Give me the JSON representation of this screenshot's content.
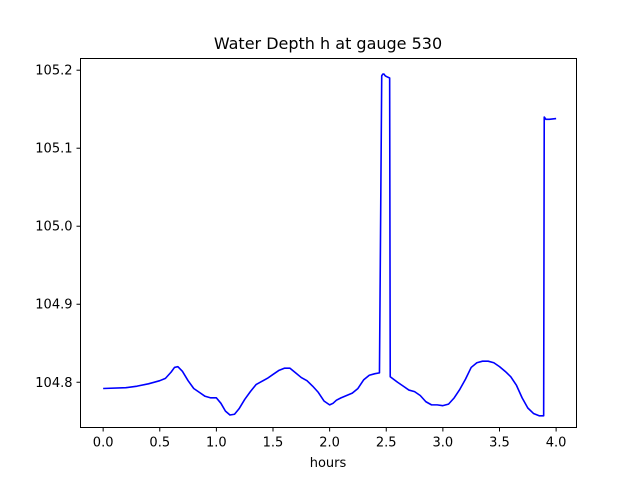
{
  "chart_data": {
    "type": "line",
    "title": "Water Depth h at gauge 530",
    "xlabel": "hours",
    "ylabel": "",
    "xlim": [
      -0.2,
      4.18
    ],
    "ylim": [
      104.742,
      105.215
    ],
    "xticks": [
      0.0,
      0.5,
      1.0,
      1.5,
      2.0,
      2.5,
      3.0,
      3.5,
      4.0
    ],
    "xtick_labels": [
      "0.0",
      "0.5",
      "1.0",
      "1.5",
      "2.0",
      "2.5",
      "3.0",
      "3.5",
      "4.0"
    ],
    "yticks": [
      104.8,
      104.9,
      105.0,
      105.1,
      105.2
    ],
    "ytick_labels": [
      "104.8",
      "104.9",
      "105.0",
      "105.1",
      "105.2"
    ],
    "grid": false,
    "legend": "none",
    "series": [
      {
        "color": "#0000ff",
        "x": [
          0.0,
          0.2,
          0.3,
          0.4,
          0.5,
          0.55,
          0.6,
          0.63,
          0.66,
          0.7,
          0.75,
          0.8,
          0.85,
          0.9,
          0.95,
          1.0,
          1.04,
          1.08,
          1.12,
          1.16,
          1.2,
          1.25,
          1.3,
          1.35,
          1.4,
          1.45,
          1.5,
          1.55,
          1.6,
          1.65,
          1.7,
          1.75,
          1.8,
          1.85,
          1.9,
          1.95,
          2.0,
          2.03,
          2.06,
          2.1,
          2.15,
          2.2,
          2.25,
          2.3,
          2.35,
          2.4,
          2.44,
          2.46,
          2.47,
          2.48,
          2.49,
          2.5,
          2.53,
          2.535,
          2.6,
          2.65,
          2.7,
          2.75,
          2.8,
          2.85,
          2.9,
          2.95,
          3.0,
          3.05,
          3.1,
          3.15,
          3.2,
          3.25,
          3.3,
          3.35,
          3.4,
          3.45,
          3.5,
          3.55,
          3.6,
          3.65,
          3.7,
          3.75,
          3.8,
          3.85,
          3.89,
          3.895,
          3.91,
          3.94,
          4.0
        ],
        "y": [
          104.792,
          104.793,
          104.795,
          104.798,
          104.802,
          104.805,
          104.813,
          104.819,
          104.82,
          104.814,
          104.802,
          104.792,
          104.787,
          104.782,
          104.78,
          104.78,
          104.773,
          104.763,
          104.758,
          104.759,
          104.766,
          104.778,
          104.788,
          104.797,
          104.801,
          104.805,
          104.81,
          104.815,
          104.818,
          104.818,
          104.812,
          104.806,
          104.802,
          104.795,
          104.787,
          104.776,
          104.771,
          104.773,
          104.777,
          104.78,
          104.783,
          104.786,
          104.792,
          104.803,
          104.809,
          104.811,
          104.812,
          105.193,
          105.195,
          105.195,
          105.193,
          105.192,
          105.19,
          104.807,
          104.8,
          104.795,
          104.79,
          104.788,
          104.783,
          104.775,
          104.771,
          104.771,
          104.77,
          104.772,
          104.78,
          104.791,
          104.804,
          104.819,
          104.825,
          104.827,
          104.827,
          104.825,
          104.82,
          104.814,
          104.807,
          104.796,
          104.78,
          104.767,
          104.76,
          104.757,
          104.757,
          105.14,
          105.137,
          105.137,
          105.138
        ]
      }
    ]
  }
}
